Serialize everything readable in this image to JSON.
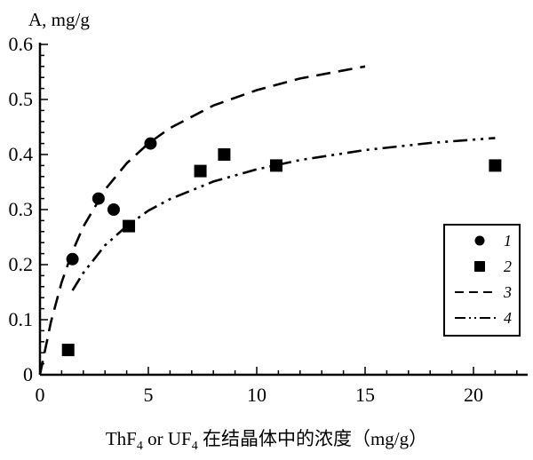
{
  "chart_data": {
    "type": "scatter",
    "ylabel": "A, mg/g",
    "xlabel": "ThF4 or UF4 在结晶体中的浓度（mg/g）",
    "xlim": [
      0,
      22.5
    ],
    "ylim": [
      0,
      0.6
    ],
    "x_ticks": [
      0,
      5,
      10,
      15,
      20
    ],
    "y_ticks": [
      0,
      0.1,
      0.2,
      0.3,
      0.4,
      0.5,
      0.6
    ],
    "grid": false,
    "legend_position": "right",
    "series": [
      {
        "name": "1",
        "kind": "points",
        "marker": "circle",
        "x": [
          1.5,
          2.7,
          3.4,
          5.1
        ],
        "y": [
          0.21,
          0.32,
          0.3,
          0.42
        ]
      },
      {
        "name": "2",
        "kind": "points",
        "marker": "square",
        "x": [
          1.3,
          4.1,
          7.4,
          8.5,
          10.9,
          21.0
        ],
        "y": [
          0.045,
          0.27,
          0.37,
          0.4,
          0.38,
          0.38
        ]
      },
      {
        "name": "3",
        "kind": "line",
        "style": "dashed",
        "x": [
          0,
          0.5,
          1,
          1.5,
          2,
          3,
          4,
          5,
          6,
          8,
          10,
          12,
          15
        ],
        "y": [
          0,
          0.095,
          0.168,
          0.224,
          0.269,
          0.336,
          0.384,
          0.42,
          0.448,
          0.489,
          0.517,
          0.538,
          0.56
        ]
      },
      {
        "name": "4",
        "kind": "line",
        "style": "dash-dot-dot",
        "x": [
          1.5,
          2,
          3,
          4,
          5,
          6,
          8,
          10,
          12,
          15,
          18,
          21
        ],
        "y": [
          0.153,
          0.185,
          0.235,
          0.27,
          0.298,
          0.319,
          0.351,
          0.373,
          0.39,
          0.408,
          0.421,
          0.43
        ]
      }
    ]
  }
}
